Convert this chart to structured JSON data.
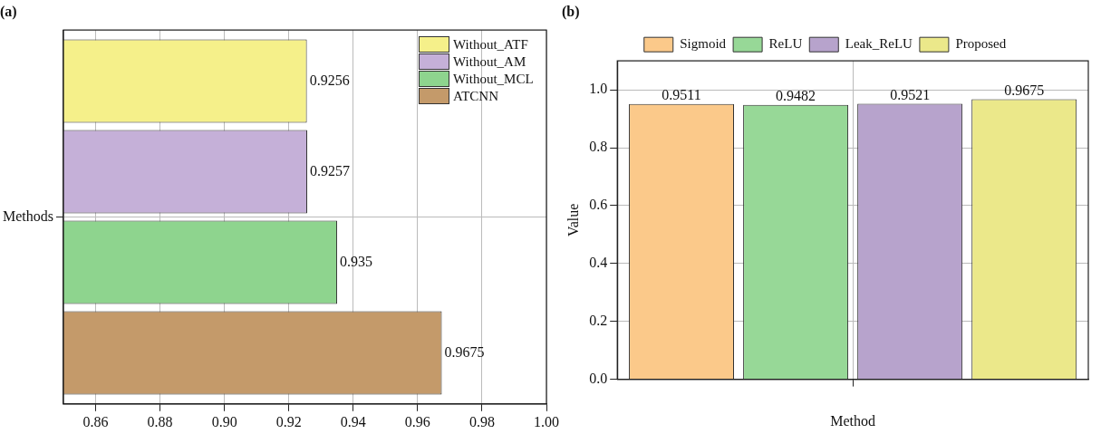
{
  "chart_data": [
    {
      "type": "bar",
      "title": "(a)",
      "orientation": "horizontal",
      "categories": [
        "Methods"
      ],
      "series": [
        {
          "name": "Without_ATF",
          "color": "#f5f08a",
          "values": [
            0.9256
          ]
        },
        {
          "name": "Without_AM",
          "color": "#c5b0d8",
          "values": [
            0.9257
          ]
        },
        {
          "name": "Without_MCL",
          "color": "#8ed48e",
          "values": [
            0.935
          ]
        },
        {
          "name": "ATCNN",
          "color": "#c49a6a",
          "values": [
            0.9675
          ]
        }
      ],
      "xlim": [
        0.85,
        1.0
      ],
      "xticks": [
        0.86,
        0.88,
        {
          "value": 0.9,
          "label": "0.90"
        },
        0.92,
        0.94,
        0.96,
        0.98,
        {
          "value": 1.0,
          "label": "1.00"
        }
      ],
      "data_labels": true,
      "grid": true,
      "legend": "top right"
    },
    {
      "type": "bar",
      "title": "(b)",
      "categories": [
        null
      ],
      "xlabel": "Method",
      "ylabel": "Value",
      "series": [
        {
          "name": "Sigmoid",
          "color": "#fbc98a",
          "values": [
            0.9511
          ]
        },
        {
          "name": "ReLU",
          "color": "#97d897",
          "values": [
            0.9482
          ]
        },
        {
          "name": "Leak_ReLU",
          "color": "#b7a3cc",
          "values": [
            0.9521
          ]
        },
        {
          "name": "Proposed",
          "color": "#ebe88a",
          "values": [
            0.9675
          ]
        }
      ],
      "ylim": [
        0,
        1.1
      ],
      "yticks": [
        {
          "value": 0,
          "label": "0.0"
        },
        0.2,
        0.4,
        0.6,
        0.8,
        {
          "value": 1.0,
          "label": "1.0"
        }
      ],
      "data_labels": true,
      "grid": true,
      "legend": "top"
    }
  ]
}
